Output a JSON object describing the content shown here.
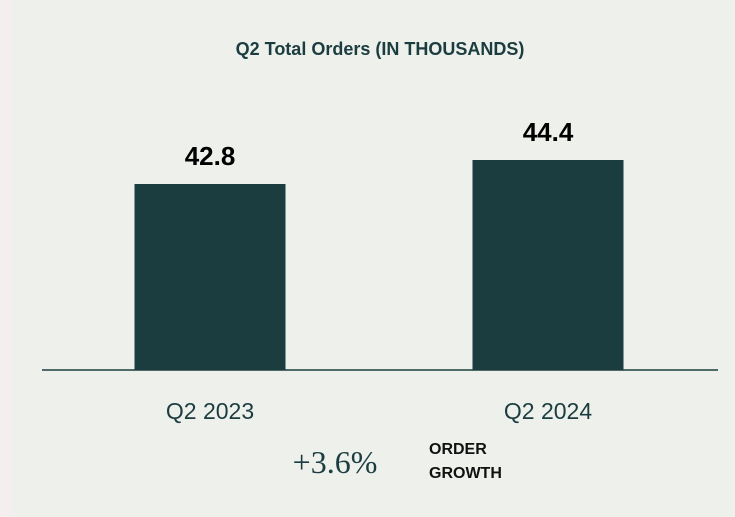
{
  "chart_data": {
    "type": "bar",
    "title": "Q2 Total Orders (IN THOUSANDS)",
    "categories": [
      "Q2 2023",
      "Q2 2024"
    ],
    "values": [
      42.8,
      44.4
    ],
    "color": "#1b3d3f",
    "ylim": [
      30.4,
      46
    ],
    "annotation": {
      "value": "+3.6%",
      "label": "ORDER GROWTH"
    }
  }
}
